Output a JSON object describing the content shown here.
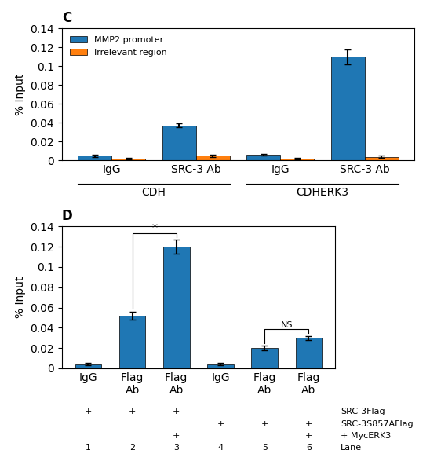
{
  "chart_data": [
    {
      "type": "bar",
      "title": "C",
      "categories": [
        "IgG",
        "SRC-3 Ab",
        "IgG",
        "SRC-3 Ab"
      ],
      "groups": [
        {
          "name": "CDH",
          "size": 2
        },
        {
          "name": "CDHERK3",
          "size": 2
        }
      ],
      "series": [
        {
          "name": "MMP2 promoter",
          "values": [
            0.005,
            0.037,
            0.006,
            0.11
          ],
          "errors": [
            0.001,
            0.002,
            0.001,
            0.008
          ]
        },
        {
          "name": "Irrelevant region",
          "values": [
            0.002,
            0.005,
            0.002,
            0.004
          ],
          "errors": [
            0.001,
            0.001,
            0.001,
            0.001
          ]
        }
      ],
      "ylabel": "% Input",
      "ylim": [
        0,
        0.14
      ],
      "yticks": [
        0,
        0.02,
        0.04,
        0.06,
        0.08,
        0.1,
        0.12,
        0.14
      ],
      "legend": "upper left"
    },
    {
      "type": "bar",
      "title": "D",
      "categories": [
        "IgG",
        "Flag\nAb",
        "Flag\nAb",
        "IgG",
        "Flag\nAb",
        "Flag\nAb"
      ],
      "values": [
        0.004,
        0.052,
        0.12,
        0.004,
        0.02,
        0.03
      ],
      "errors": [
        0.001,
        0.004,
        0.007,
        0.001,
        0.002,
        0.002
      ],
      "ylabel": "% Input",
      "ylim": [
        0,
        0.14
      ],
      "yticks": [
        0,
        0.02,
        0.04,
        0.06,
        0.08,
        0.1,
        0.12,
        0.14
      ],
      "annotations": [
        {
          "text": "*",
          "from": 1,
          "to": 2
        },
        {
          "text": "NS",
          "from": 4,
          "to": 5
        }
      ],
      "conditions": {
        "mark": "+",
        "rows": [
          {
            "name": "SRC-3Flag",
            "marks": [
              true,
              true,
              true,
              false,
              false,
              false
            ]
          },
          {
            "name": "SRC-3S857AFlag",
            "marks": [
              false,
              false,
              false,
              true,
              true,
              true
            ]
          },
          {
            "name": "+ MycERK3",
            "marks": [
              false,
              false,
              true,
              false,
              false,
              true
            ]
          }
        ]
      },
      "lanes": {
        "name": "Lane",
        "labels": [
          "1",
          "2",
          "3",
          "4",
          "5",
          "6"
        ]
      }
    }
  ]
}
